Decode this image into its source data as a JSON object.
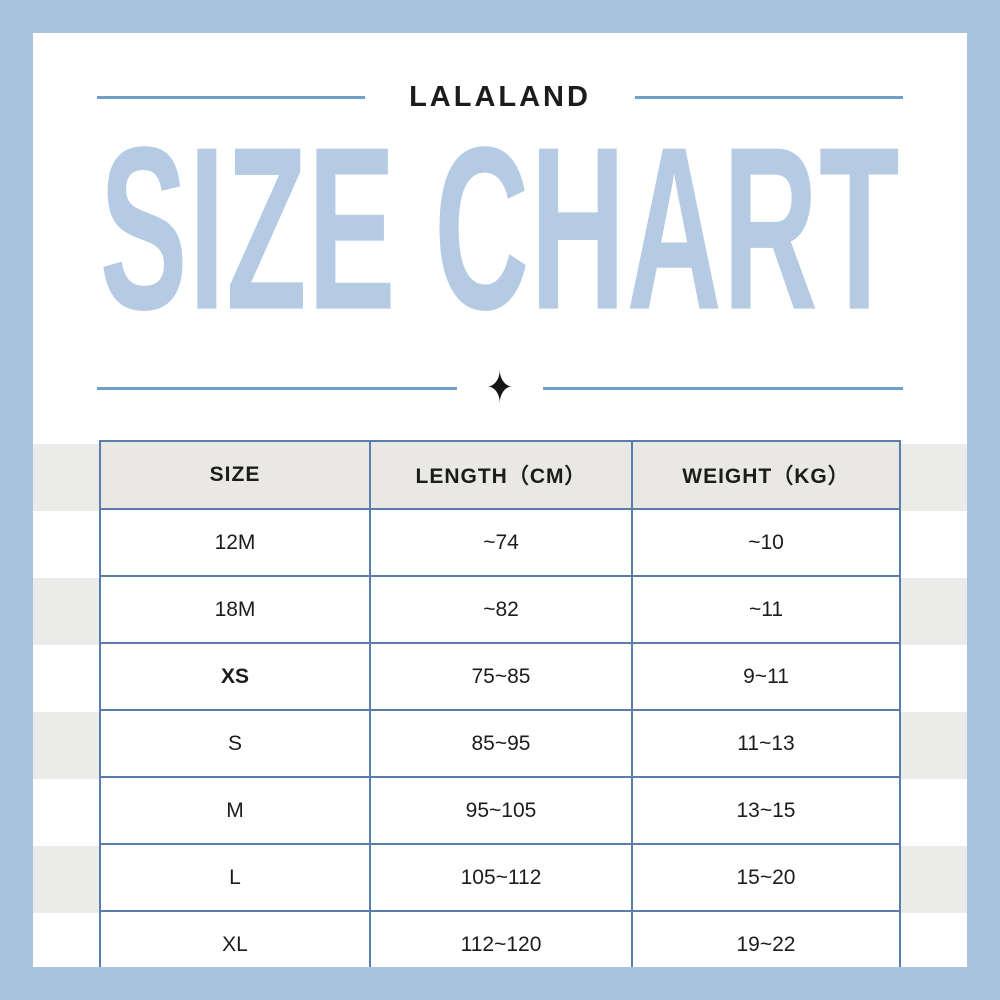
{
  "header": {
    "brand": "LALALAND",
    "title": "SIZE CHART"
  },
  "divider": {
    "star_icon": "✦"
  },
  "table": {
    "columns": [
      "SIZE",
      "LENGTH（CM）",
      "WEIGHT（KG）"
    ],
    "rows": [
      {
        "size": "12M",
        "length": "~74",
        "weight": "~10",
        "bold": false
      },
      {
        "size": "18M",
        "length": "~82",
        "weight": "~11",
        "bold": false
      },
      {
        "size": "XS",
        "length": "75~85",
        "weight": "9~11",
        "bold": true
      },
      {
        "size": "S",
        "length": "85~95",
        "weight": "11~13",
        "bold": false
      },
      {
        "size": "M",
        "length": "95~105",
        "weight": "13~15",
        "bold": false
      },
      {
        "size": "L",
        "length": "105~112",
        "weight": "15~20",
        "bold": false
      },
      {
        "size": "XL",
        "length": "112~120",
        "weight": "19~22",
        "bold": false
      }
    ]
  },
  "colors": {
    "frame_blue": "#a9c3de",
    "title_blue": "#b5cae3",
    "rule_blue": "#6f9ec9",
    "table_border_blue": "#5b7dab",
    "header_bg": "#e9e8e4",
    "stripe_gray": "#ebebea",
    "text_dark": "#1c1c1c"
  }
}
